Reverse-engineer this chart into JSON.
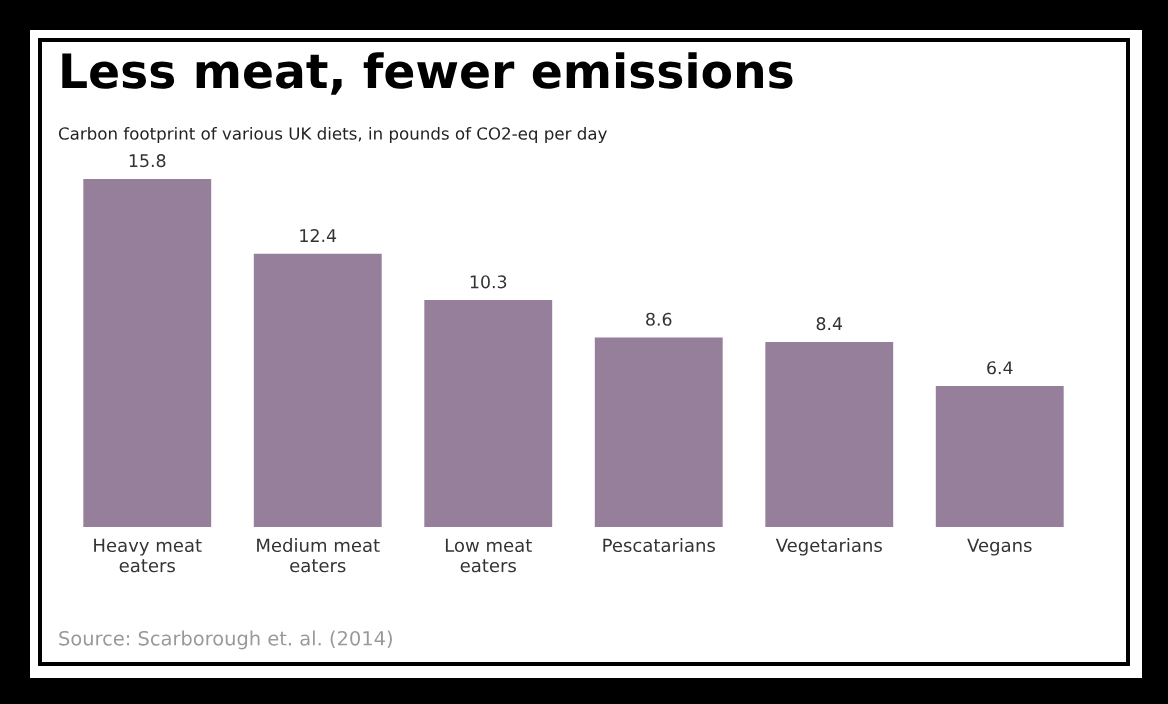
{
  "chart_data": {
    "type": "bar",
    "title": "Less meat, fewer emissions",
    "subtitle": "Carbon footprint of various UK diets, in pounds of CO2-eq per day",
    "categories": [
      "Heavy meat\neaters",
      "Medium meat\neaters",
      "Low meat\neaters",
      "Pescatarians",
      "Vegetarians",
      "Vegans"
    ],
    "values": [
      15.8,
      12.4,
      10.3,
      8.6,
      8.4,
      6.4
    ],
    "color": "#967f9a",
    "data_labels": true,
    "grid": false,
    "annotations": [
      "Source: Scarborough et. al. (2014)"
    ]
  }
}
